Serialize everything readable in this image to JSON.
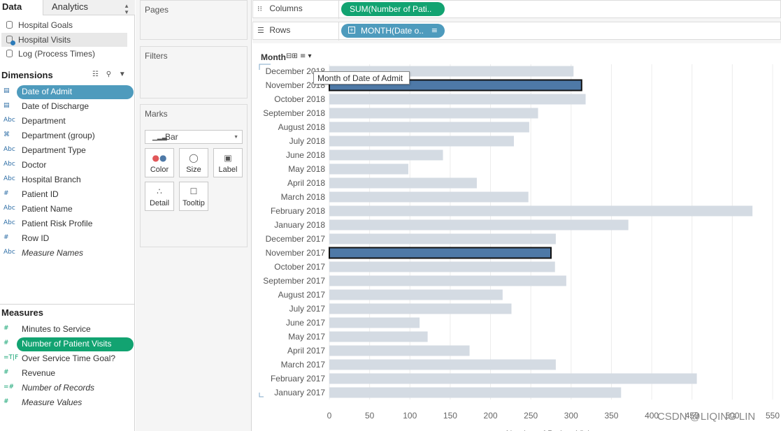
{
  "left_pane": {
    "tabs": {
      "data": "Data",
      "analytics": "Analytics"
    },
    "data_sources": [
      {
        "label": "Hospital Goals",
        "selected": false
      },
      {
        "label": "Hospital Visits",
        "selected": true
      },
      {
        "label": "Log (Process Times)",
        "selected": false
      }
    ],
    "dimensions_title": "Dimensions",
    "dimensions": [
      {
        "type": "date",
        "label": "Date of Admit",
        "state": "pill-blue"
      },
      {
        "type": "date",
        "label": "Date of Discharge",
        "state": ""
      },
      {
        "type": "abc",
        "label": "Department",
        "state": ""
      },
      {
        "type": "link",
        "label": "Department (group)",
        "state": ""
      },
      {
        "type": "abc",
        "label": "Department Type",
        "state": ""
      },
      {
        "type": "abc",
        "label": "Doctor",
        "state": ""
      },
      {
        "type": "abc",
        "label": "Hospital Branch",
        "state": ""
      },
      {
        "type": "num",
        "label": "Patient ID",
        "state": ""
      },
      {
        "type": "abc",
        "label": "Patient Name",
        "state": ""
      },
      {
        "type": "abc",
        "label": "Patient Risk Profile",
        "state": ""
      },
      {
        "type": "num",
        "label": "Row ID",
        "state": ""
      },
      {
        "type": "abc",
        "label": "Measure Names",
        "state": "italic"
      }
    ],
    "measures_title": "Measures",
    "measures": [
      {
        "type": "num",
        "label": "Minutes to Service",
        "state": ""
      },
      {
        "type": "num",
        "label": "Number of Patient Visits",
        "state": "pill-green"
      },
      {
        "type": "tf",
        "label": "Over Service Time Goal?",
        "state": ""
      },
      {
        "type": "num",
        "label": "Revenue",
        "state": ""
      },
      {
        "type": "numcalc",
        "label": "Number of Records",
        "state": "italic"
      },
      {
        "type": "num",
        "label": "Measure Values",
        "state": "italic"
      }
    ]
  },
  "cards": {
    "pages": "Pages",
    "filters": "Filters",
    "marks": "Marks",
    "mark_type": "Bar",
    "mark_buttons": [
      {
        "label": "Color",
        "icon": "color-icon"
      },
      {
        "label": "Size",
        "icon": "size-icon"
      },
      {
        "label": "Label",
        "icon": "label-icon"
      },
      {
        "label": "Detail",
        "icon": "detail-icon"
      },
      {
        "label": "Tooltip",
        "icon": "tooltip-icon"
      }
    ]
  },
  "shelves": {
    "columns_label": "Columns",
    "columns_pill": "SUM(Number of Pati..",
    "rows_label": "Rows",
    "rows_pill": "MONTH(Date o.."
  },
  "view": {
    "row_header": "Month",
    "tooltip": "Month of Date of Admit"
  },
  "chart_data": {
    "type": "bar",
    "orientation": "horizontal",
    "xlabel": "Number of Patient Visits",
    "ylabel": "",
    "xlim": [
      0,
      550
    ],
    "xticks": [
      0,
      50,
      100,
      150,
      200,
      250,
      300,
      350,
      400,
      450,
      500,
      550
    ],
    "categories": [
      "December 2018",
      "November 2018",
      "October 2018",
      "September 2018",
      "August 2018",
      "July 2018",
      "June 2018",
      "May 2018",
      "April 2018",
      "March 2018",
      "February 2018",
      "January 2018",
      "December 2017",
      "November 2017",
      "October 2017",
      "September 2017",
      "August 2017",
      "July 2017",
      "June 2017",
      "May 2017",
      "April 2017",
      "March 2017",
      "February 2017",
      "January 2017"
    ],
    "values": [
      303,
      313,
      318,
      259,
      248,
      229,
      141,
      98,
      183,
      247,
      525,
      371,
      281,
      275,
      280,
      294,
      215,
      226,
      112,
      122,
      174,
      281,
      456,
      362
    ],
    "highlighted": [
      "November 2018",
      "November 2017"
    ],
    "colors": {
      "bar": "#d4dbe3",
      "highlight": "#4e79a7",
      "highlight_border": "#111111",
      "grid": "#ececec"
    },
    "grid": true
  },
  "watermark": "CSDN @LIQING LIN"
}
